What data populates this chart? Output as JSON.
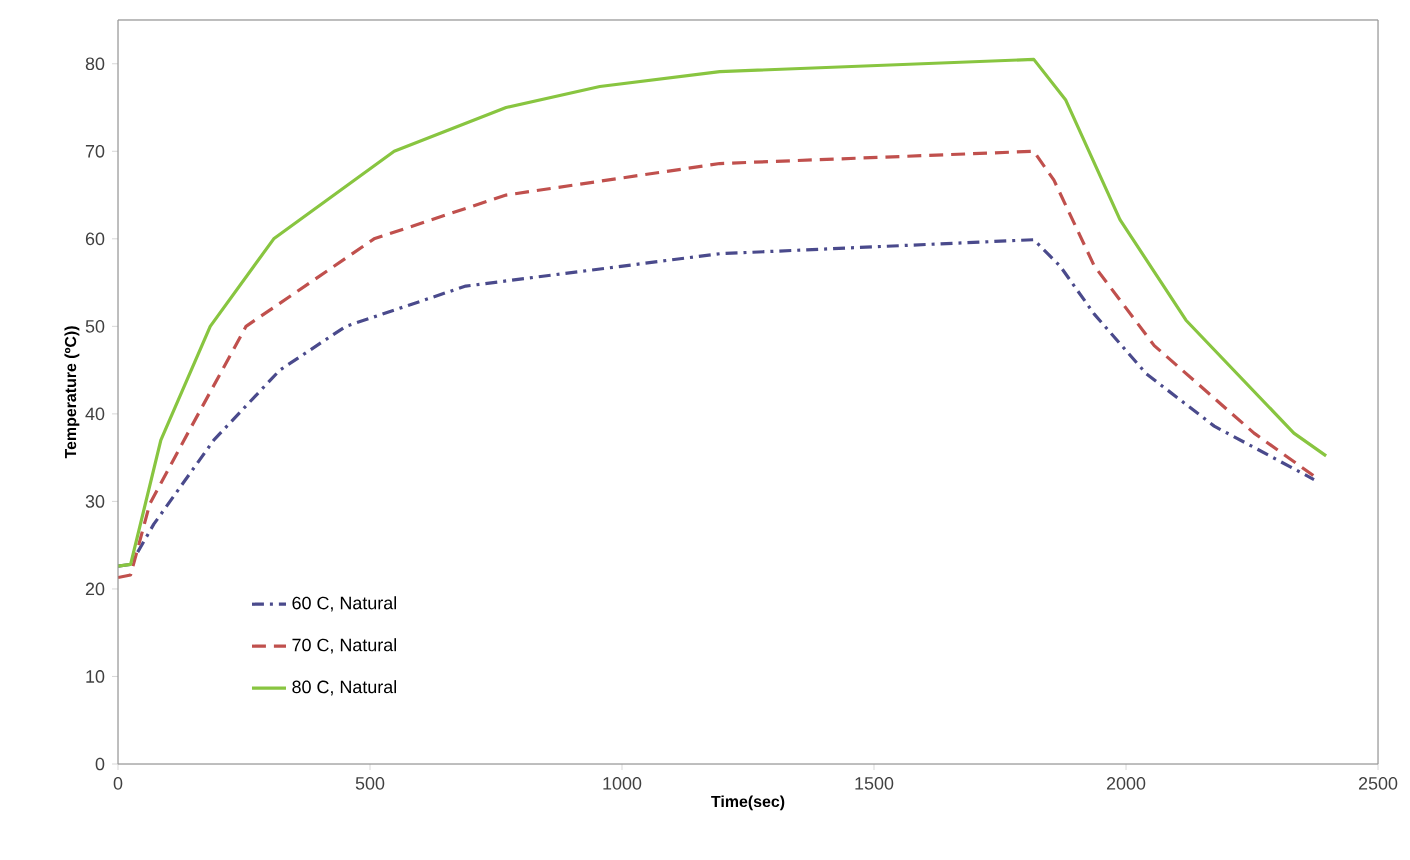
{
  "chart_data": {
    "type": "line",
    "xlabel": "Time(sec)",
    "ylabel": "Temperature (ºC))",
    "xlim": [
      0,
      2500
    ],
    "xticks": [
      0,
      500,
      1000,
      1500,
      2000,
      2500
    ],
    "ylim": [
      0,
      85
    ],
    "yticks": [
      0,
      10,
      20,
      30,
      40,
      50,
      60,
      70,
      80
    ],
    "grid": false,
    "legend": "bottom left",
    "marker": "none",
    "series": [
      {
        "name": "60 C, Natural",
        "color": "#4a4a8c",
        "line_style": "dashdot",
        "x": [
          0,
          25,
          71,
          190,
          321,
          452,
          690,
          1194,
          1817,
          1869,
          1937,
          2040,
          2175,
          2373
        ],
        "values": [
          22.6,
          22.8,
          27.4,
          37,
          45,
          50,
          54.6,
          58.3,
          59.9,
          56.9,
          51.4,
          44.6,
          38.6,
          32.5
        ]
      },
      {
        "name": "70 C, Natural",
        "color": "#c0504d",
        "line_style": "dashed",
        "x": [
          0,
          25,
          63,
          131,
          254,
          508,
          770,
          1194,
          1817,
          1857,
          1937,
          2056,
          2254,
          2373
        ],
        "values": [
          21.3,
          21.6,
          29.7,
          37,
          50,
          60,
          65,
          68.6,
          70,
          66.7,
          56.9,
          47.8,
          37.8,
          32.9
        ]
      },
      {
        "name": "80 C, Natural",
        "color": "#88c540",
        "line_style": "solid",
        "x": [
          0,
          25,
          85,
          183,
          309,
          548,
          770,
          956,
          1194,
          1817,
          1880,
          1988,
          2119,
          2333,
          2397
        ],
        "values": [
          22.6,
          22.8,
          37,
          50,
          60,
          70,
          75,
          77.4,
          79.1,
          80.5,
          75.9,
          62.2,
          50.7,
          37.8,
          35.2
        ]
      }
    ]
  }
}
